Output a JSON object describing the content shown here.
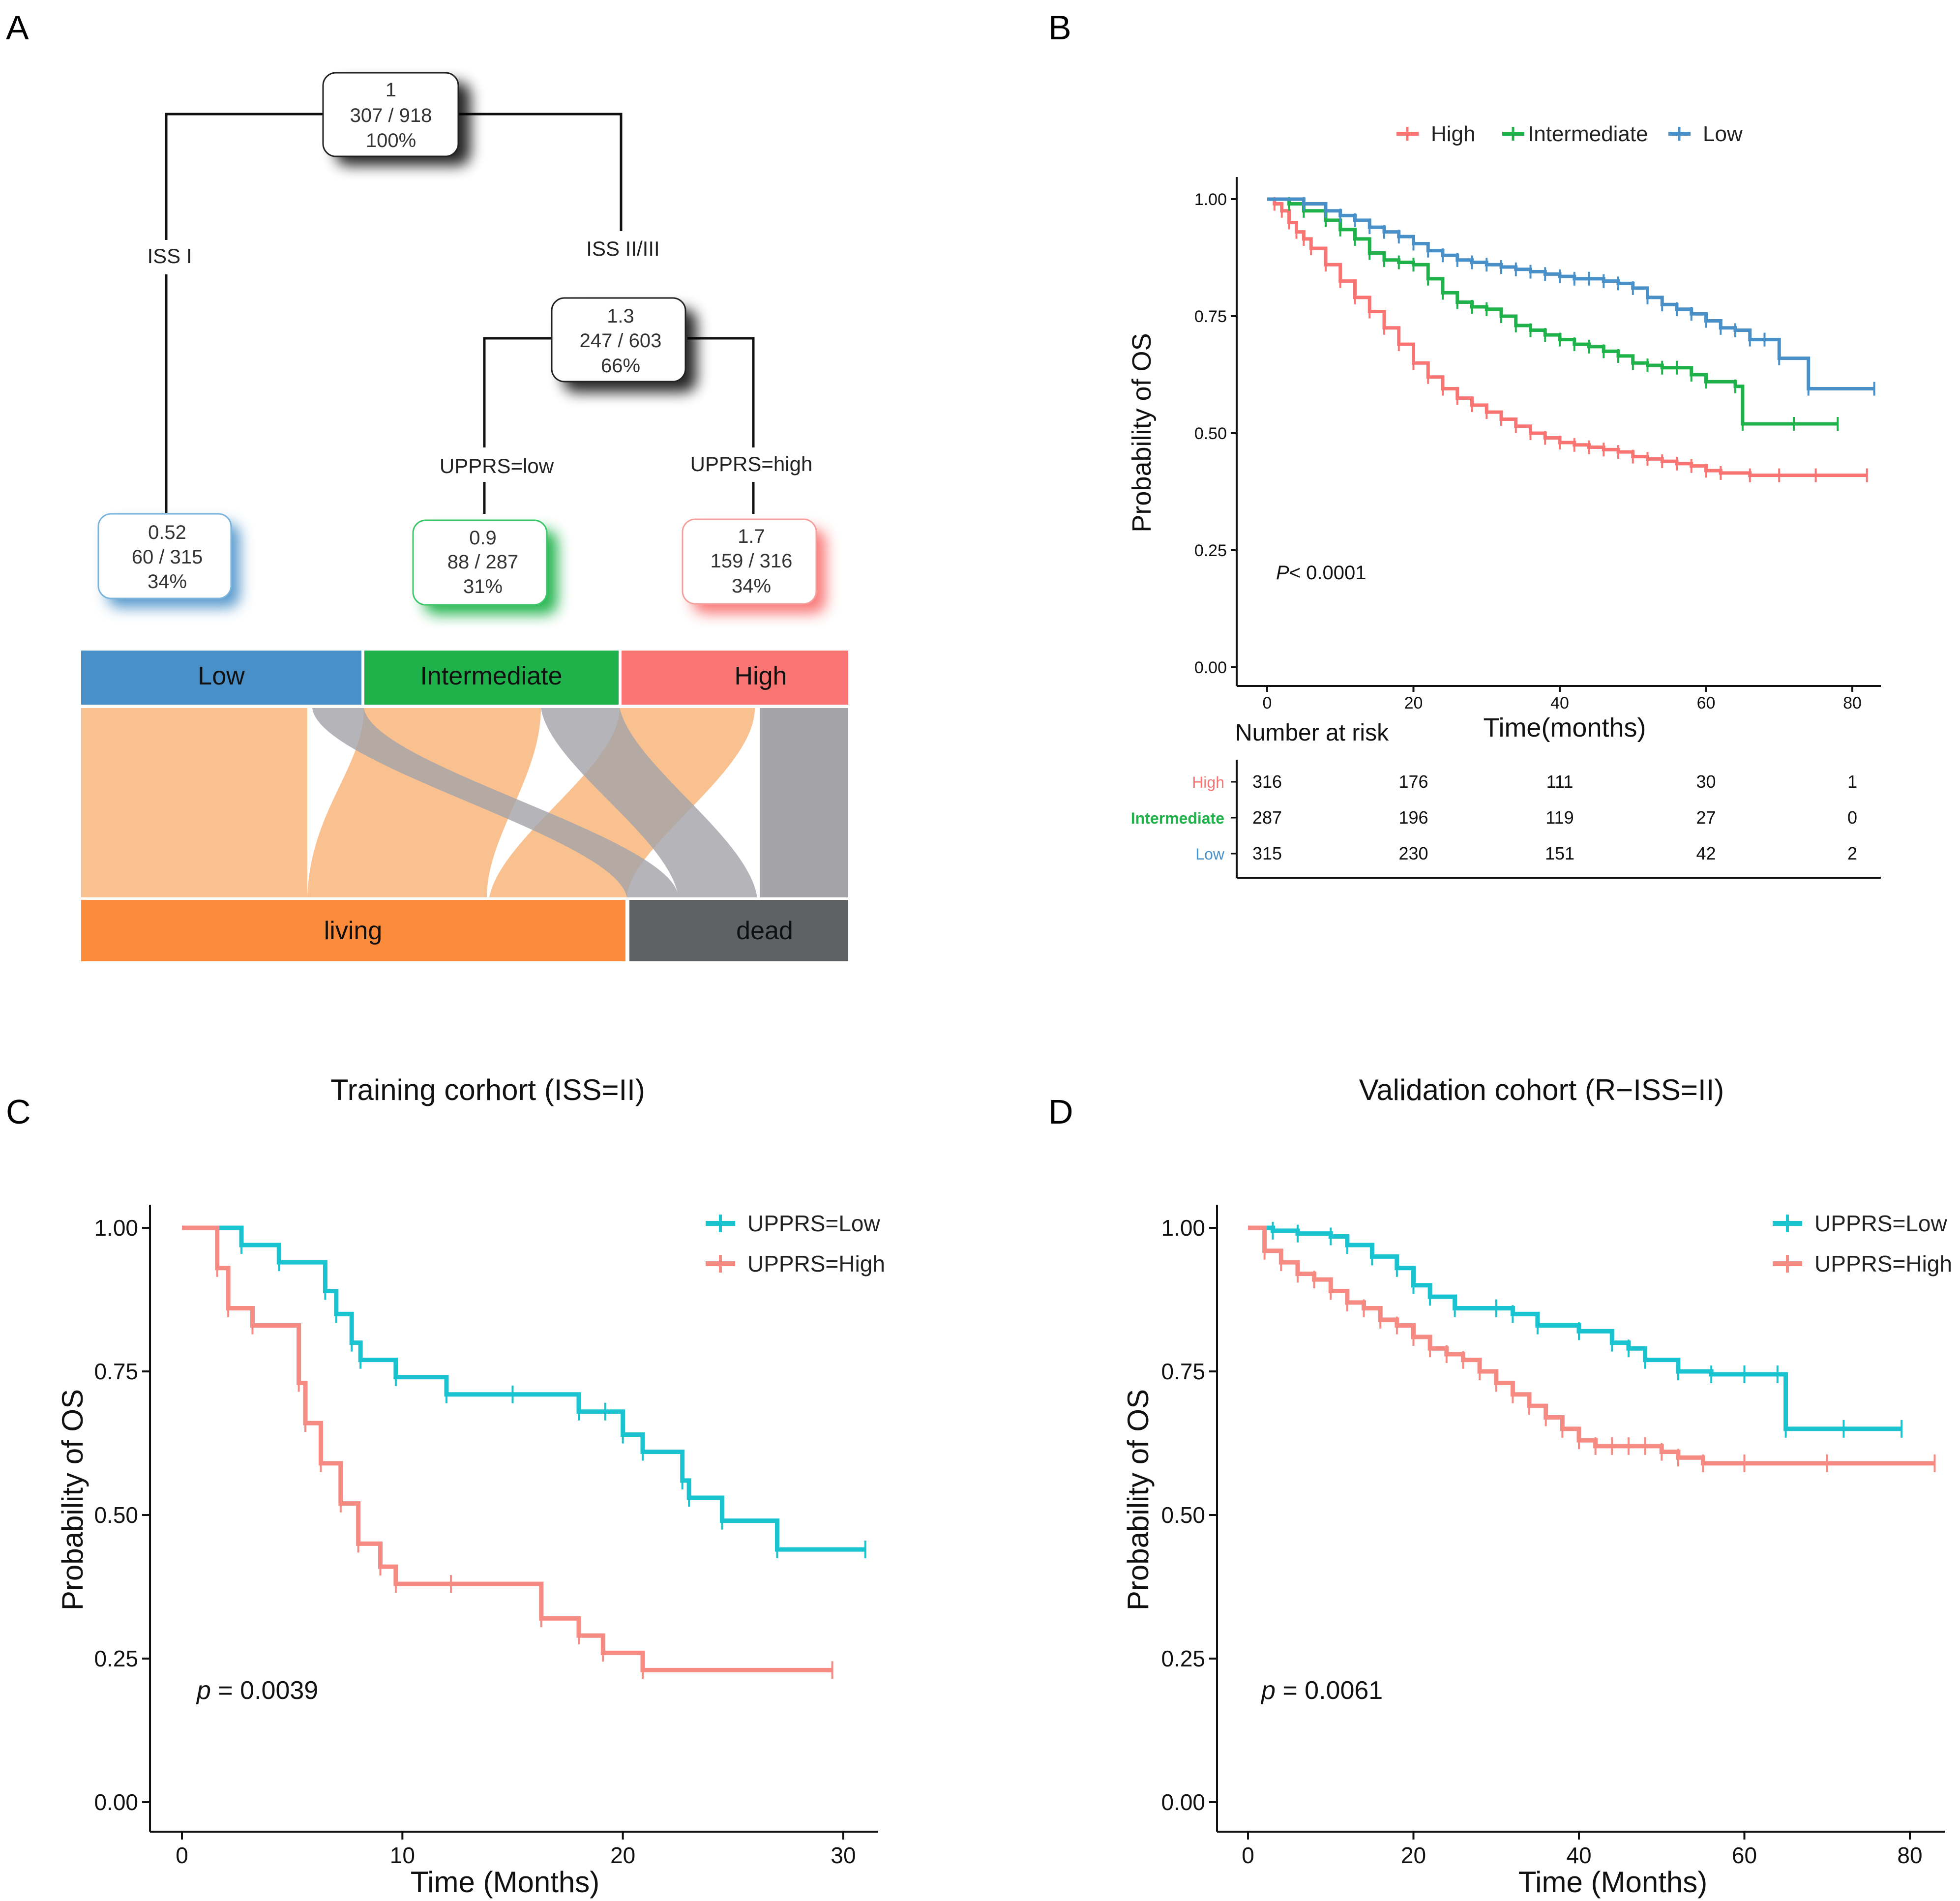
{
  "panels": {
    "a": {
      "letter": "A",
      "tree": {
        "root": {
          "l1": "1",
          "l2": "307 / 918",
          "l3": "100%"
        },
        "split1": {
          "left": "ISS I",
          "right": "ISS II/III"
        },
        "mid": {
          "l1": "1.3",
          "l2": "247 / 603",
          "l3": "66%"
        },
        "split2": {
          "left": "UPPRS=low",
          "right": "UPPRS=high"
        },
        "leaf_low": {
          "l1": "0.52",
          "l2": "60 / 315",
          "l3": "34%"
        },
        "leaf_int": {
          "l1": "0.9",
          "l2": "88 / 287",
          "l3": "31%"
        },
        "leaf_high": {
          "l1": "1.7",
          "l2": "159 / 316",
          "l3": "34%"
        }
      },
      "sankey": {
        "top": [
          "Low",
          "Intermediate",
          "High"
        ],
        "bottom": [
          "living",
          "dead"
        ],
        "colors": {
          "Low": "#4a90c8",
          "Intermediate": "#1fb24a",
          "High": "#f87573",
          "living": "#fd8b3c",
          "dead": "#5f6264",
          "flow_living": "#f9c090",
          "flow_dead": "#a3a3a8"
        }
      }
    },
    "b": {
      "letter": "B",
      "risk_header": "Number at risk"
    },
    "c": {
      "letter": "C"
    },
    "d": {
      "letter": "D"
    }
  },
  "chart_data": [
    {
      "id": "B",
      "type": "line",
      "subtype": "kaplan-meier",
      "title": "",
      "xlabel": "Time(months)",
      "ylabel": "Probability of OS",
      "xlim": [
        0,
        82
      ],
      "ylim": [
        0,
        1
      ],
      "xticks": [
        0,
        20,
        40,
        60,
        80
      ],
      "yticks": [
        "0.00",
        "0.25",
        "0.50",
        "0.75",
        "1.00"
      ],
      "legend": {
        "position": "top",
        "entries": [
          "High",
          "Intermediate",
          "Low"
        ]
      },
      "pvalue": {
        "prefix": "P",
        "text": "< 0.0001"
      },
      "series": [
        {
          "name": "High",
          "color": "#f87573",
          "x": [
            0,
            1,
            2,
            3,
            4,
            5,
            6,
            8,
            10,
            12,
            14,
            16,
            18,
            20,
            22,
            24,
            26,
            28,
            30,
            32,
            34,
            36,
            38,
            40,
            42,
            44,
            46,
            48,
            50,
            52,
            54,
            56,
            58,
            60,
            62,
            66,
            70,
            75,
            82
          ],
          "y": [
            1.0,
            0.99,
            0.975,
            0.95,
            0.93,
            0.915,
            0.895,
            0.86,
            0.825,
            0.79,
            0.76,
            0.725,
            0.69,
            0.65,
            0.62,
            0.595,
            0.575,
            0.56,
            0.545,
            0.53,
            0.515,
            0.5,
            0.49,
            0.48,
            0.475,
            0.47,
            0.465,
            0.46,
            0.45,
            0.445,
            0.44,
            0.435,
            0.43,
            0.42,
            0.415,
            0.41,
            0.41,
            0.41,
            0.41
          ]
        },
        {
          "name": "Intermediate",
          "color": "#1fb24a",
          "x": [
            0,
            3,
            5,
            8,
            10,
            12,
            14,
            16,
            18,
            20,
            22,
            24,
            26,
            28,
            30,
            32,
            34,
            36,
            38,
            40,
            42,
            44,
            46,
            48,
            50,
            52,
            54,
            56,
            58,
            60,
            64,
            65,
            72,
            78
          ],
          "y": [
            1.0,
            0.99,
            0.975,
            0.955,
            0.935,
            0.915,
            0.885,
            0.87,
            0.865,
            0.86,
            0.83,
            0.8,
            0.78,
            0.77,
            0.765,
            0.75,
            0.73,
            0.72,
            0.71,
            0.7,
            0.69,
            0.685,
            0.675,
            0.665,
            0.65,
            0.645,
            0.64,
            0.64,
            0.625,
            0.61,
            0.6,
            0.52,
            0.52,
            0.52
          ]
        },
        {
          "name": "Low",
          "color": "#4a90c8",
          "x": [
            0,
            5,
            8,
            10,
            12,
            14,
            16,
            18,
            20,
            22,
            24,
            26,
            28,
            30,
            32,
            34,
            36,
            38,
            40,
            42,
            44,
            46,
            48,
            50,
            52,
            54,
            56,
            58,
            60,
            62,
            64,
            66,
            68,
            70,
            74,
            83
          ],
          "y": [
            1.0,
            0.99,
            0.975,
            0.965,
            0.955,
            0.94,
            0.93,
            0.92,
            0.905,
            0.89,
            0.88,
            0.87,
            0.865,
            0.86,
            0.855,
            0.85,
            0.845,
            0.84,
            0.835,
            0.83,
            0.83,
            0.825,
            0.82,
            0.81,
            0.79,
            0.775,
            0.765,
            0.755,
            0.74,
            0.725,
            0.72,
            0.7,
            0.7,
            0.66,
            0.595,
            0.595
          ]
        }
      ],
      "risk_table": {
        "header": "Number at risk",
        "times": [
          0,
          20,
          40,
          60,
          80
        ],
        "rows": [
          {
            "label": "High",
            "color": "#f87573",
            "values": [
              "316",
              "176",
              "111",
              "30",
              "1"
            ]
          },
          {
            "label": "Intermediate",
            "color": "#1fb24a",
            "values": [
              "287",
              "196",
              "119",
              "27",
              "0"
            ]
          },
          {
            "label": "Low",
            "color": "#4a90c8",
            "values": [
              "315",
              "230",
              "151",
              "42",
              "2"
            ]
          }
        ]
      }
    },
    {
      "id": "C",
      "type": "line",
      "subtype": "kaplan-meier",
      "title": "Training corhort (ISS=II)",
      "xlabel": "Time (Months)",
      "ylabel": "Probability of OS",
      "xlim": [
        0,
        31.5
      ],
      "ylim": [
        0,
        1
      ],
      "xticks": [
        0,
        10,
        20,
        30
      ],
      "yticks": [
        "0.00",
        "0.25",
        "0.50",
        "0.75",
        "1.00"
      ],
      "legend": {
        "position": "top-right",
        "entries": [
          "UPPRS=Low",
          "UPPRS=High"
        ]
      },
      "pvalue": {
        "prefix": "p",
        "text": " = 0.0039"
      },
      "series": [
        {
          "name": "UPPRS=Low",
          "color": "#19c3cf",
          "x": [
            0,
            2.7,
            4.4,
            6.5,
            7.0,
            7.7,
            8.1,
            9.7,
            12.0,
            15.0,
            18.0,
            19.2,
            20.0,
            20.9,
            22.7,
            23.0,
            24.5,
            27.0,
            31.0
          ],
          "y": [
            1.0,
            0.97,
            0.94,
            0.89,
            0.85,
            0.8,
            0.77,
            0.74,
            0.71,
            0.71,
            0.68,
            0.68,
            0.64,
            0.61,
            0.56,
            0.53,
            0.49,
            0.44,
            0.44
          ]
        },
        {
          "name": "UPPRS=High",
          "color": "#f68b83",
          "x": [
            0,
            1.6,
            2.1,
            3.2,
            5.3,
            5.6,
            6.3,
            7.2,
            8.0,
            9.0,
            9.7,
            12.2,
            16.3,
            18.0,
            19.1,
            20.9,
            29.5
          ],
          "y": [
            1.0,
            0.93,
            0.86,
            0.83,
            0.73,
            0.66,
            0.59,
            0.52,
            0.45,
            0.41,
            0.38,
            0.38,
            0.32,
            0.29,
            0.26,
            0.23,
            0.23
          ]
        }
      ]
    },
    {
      "id": "D",
      "type": "line",
      "subtype": "kaplan-meier",
      "title": "Validation cohort (R−ISS=II)",
      "xlabel": "Time (Months)",
      "ylabel": "Probability of OS",
      "xlim": [
        0,
        84
      ],
      "ylim": [
        0,
        1
      ],
      "xticks": [
        0,
        20,
        40,
        60,
        80
      ],
      "yticks": [
        "0.00",
        "0.25",
        "0.50",
        "0.75",
        "1.00"
      ],
      "legend": {
        "position": "top-right",
        "entries": [
          "UPPRS=Low",
          "UPPRS=High"
        ]
      },
      "pvalue": {
        "prefix": "p",
        "text": " = 0.0061"
      },
      "series": [
        {
          "name": "UPPRS=Low",
          "color": "#19c3cf",
          "x": [
            0,
            3,
            6,
            10,
            12,
            15,
            18,
            20,
            22,
            25,
            30,
            32,
            35,
            40,
            44,
            46,
            48,
            52,
            56,
            60,
            64,
            65,
            72,
            79
          ],
          "y": [
            1.0,
            0.995,
            0.99,
            0.985,
            0.97,
            0.95,
            0.93,
            0.9,
            0.88,
            0.86,
            0.86,
            0.85,
            0.83,
            0.82,
            0.8,
            0.79,
            0.77,
            0.75,
            0.745,
            0.745,
            0.745,
            0.65,
            0.65,
            0.65
          ]
        },
        {
          "name": "UPPRS=High",
          "color": "#f68b83",
          "x": [
            0,
            2,
            4,
            6,
            8,
            10,
            12,
            14,
            16,
            18,
            20,
            22,
            24,
            26,
            28,
            30,
            32,
            34,
            36,
            38,
            40,
            42,
            44,
            46,
            48,
            50,
            52,
            55,
            60,
            70,
            83
          ],
          "y": [
            1.0,
            0.96,
            0.94,
            0.92,
            0.91,
            0.89,
            0.87,
            0.86,
            0.84,
            0.83,
            0.81,
            0.79,
            0.78,
            0.77,
            0.75,
            0.73,
            0.71,
            0.69,
            0.67,
            0.65,
            0.63,
            0.62,
            0.62,
            0.62,
            0.62,
            0.61,
            0.6,
            0.59,
            0.59,
            0.59,
            0.59
          ]
        }
      ]
    }
  ]
}
